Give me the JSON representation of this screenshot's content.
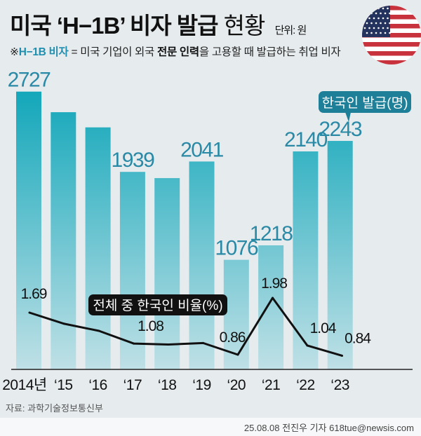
{
  "header": {
    "title_main": "미국 ‘H−1B’ 비자 발급",
    "title_light": "현황",
    "unit": "단위: 원",
    "subtitle_mark": "※",
    "subtitle_term": "H−1B 비자",
    "subtitle_pre": " = 미국 기업이 외국 ",
    "subtitle_bold1": "전문 인력",
    "subtitle_post": "을 고용할 때 발급하는 취업 비자",
    "flag_icon": "us-flag-icon"
  },
  "chart_data": [
    {
      "type": "bar",
      "name": "한국인 발급(명)",
      "categories": [
        "2014년",
        "‘15",
        "‘16",
        "‘17",
        "‘18",
        "‘19",
        "‘20",
        "‘21",
        "‘22",
        "‘23"
      ],
      "values": [
        2727,
        2525,
        2376,
        1939,
        1878,
        2041,
        1076,
        1218,
        2140,
        2243
      ],
      "data_labels": [
        "2727",
        "",
        "",
        "1939",
        "",
        "2041",
        "1076",
        "1218",
        "2140",
        "2243"
      ],
      "color": "#17a9bb",
      "ylim": [
        0,
        2727
      ]
    },
    {
      "type": "line",
      "name": "전체 중 한국인 비율(%)",
      "categories": [
        "2014년",
        "‘15",
        "‘16",
        "‘17",
        "‘18",
        "‘19",
        "‘20",
        "‘21",
        "‘22",
        "‘23"
      ],
      "values": [
        1.69,
        1.47,
        1.33,
        1.08,
        1.06,
        1.09,
        0.86,
        1.98,
        1.04,
        0.84
      ],
      "data_labels": [
        "1.69",
        "",
        "",
        "1.08",
        "",
        "",
        "0.86",
        "1.98",
        "1.04",
        "0.84"
      ],
      "color": "#111111"
    }
  ],
  "footer": {
    "source": "자료: 과학기술정보통신부",
    "credit": "25.08.08 전진우 기자 618tue@newsis.com"
  }
}
